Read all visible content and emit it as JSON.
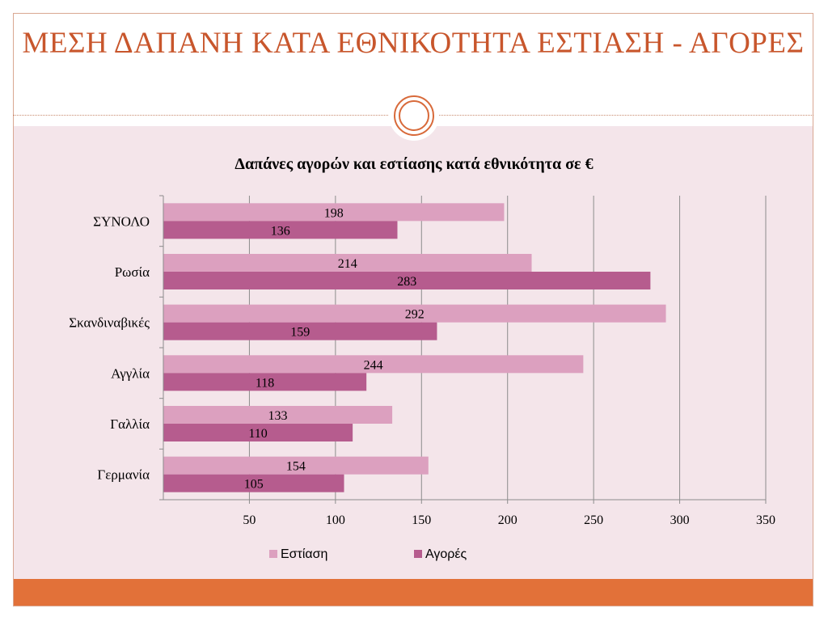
{
  "slide": {
    "title": "ΜΕΣΗ ΔΑΠΑΝΗ ΚΑΤΑ ΕΘΝΙΚΟΤΗΤΑ ΕΣΤΙΑΣΗ - ΑΓΟΡΕΣ"
  },
  "colors": {
    "title": "#c8562c",
    "estiasi": "#dca0bf",
    "agores": "#b65c8e",
    "footer": "#e27139",
    "content_bg": "#f4e5ea"
  },
  "chart_data": {
    "type": "bar",
    "orientation": "horizontal",
    "title": "Δαπάνες αγορών και εστίασης κατά εθνικότητα σε €",
    "categories": [
      "ΣΥΝΟΛΟ",
      "Ρωσία",
      "Σκανδιναβικές",
      "Αγγλία",
      "Γαλλία",
      "Γερμανία"
    ],
    "series": [
      {
        "name": "Εστίαση",
        "values": [
          198,
          214,
          292,
          244,
          133,
          154
        ]
      },
      {
        "name": "Αγορές",
        "values": [
          136,
          283,
          159,
          118,
          110,
          105
        ]
      }
    ],
    "xlim": [
      0,
      350
    ],
    "xticks": [
      50,
      100,
      150,
      200,
      250,
      300,
      350
    ],
    "xlabel": "",
    "ylabel": "",
    "grid": "vertical",
    "legend": "bottom"
  }
}
